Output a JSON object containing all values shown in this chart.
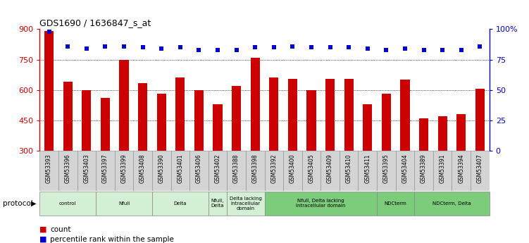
{
  "title": "GDS1690 / 1636847_s_at",
  "samples": [
    "GSM53393",
    "GSM53396",
    "GSM53403",
    "GSM53397",
    "GSM53399",
    "GSM53408",
    "GSM53390",
    "GSM53401",
    "GSM53406",
    "GSM53402",
    "GSM53388",
    "GSM53398",
    "GSM53392",
    "GSM53400",
    "GSM53405",
    "GSM53409",
    "GSM53410",
    "GSM53411",
    "GSM53395",
    "GSM53404",
    "GSM53389",
    "GSM53391",
    "GSM53394",
    "GSM53407"
  ],
  "counts": [
    890,
    640,
    600,
    560,
    748,
    635,
    580,
    660,
    600,
    530,
    620,
    760,
    660,
    655,
    600,
    655,
    655,
    530,
    580,
    650,
    460,
    470,
    480,
    605
  ],
  "percentiles": [
    98,
    86,
    84,
    86,
    86,
    85,
    84,
    85,
    83,
    83,
    83,
    85,
    85,
    86,
    85,
    85,
    85,
    84,
    83,
    84,
    83,
    83,
    83,
    86
  ],
  "bar_color": "#cc0000",
  "dot_color": "#0000cc",
  "ylim_left": [
    300,
    900
  ],
  "ylim_right": [
    0,
    100
  ],
  "yticks_left": [
    300,
    450,
    600,
    750,
    900
  ],
  "yticks_right": [
    0,
    25,
    50,
    75,
    100
  ],
  "groups": [
    {
      "label": "control",
      "start": 0,
      "end": 2,
      "color": "#d4f0d4"
    },
    {
      "label": "Nfull",
      "start": 3,
      "end": 5,
      "color": "#d4f0d4"
    },
    {
      "label": "Delta",
      "start": 6,
      "end": 8,
      "color": "#d4f0d4"
    },
    {
      "label": "Nfull,\nDelta",
      "start": 9,
      "end": 9,
      "color": "#d4f0d4"
    },
    {
      "label": "Delta lacking\nintracellular\ndomain",
      "start": 10,
      "end": 11,
      "color": "#d4f0d4"
    },
    {
      "label": "Nfull, Delta lacking\nintracellular domain",
      "start": 12,
      "end": 17,
      "color": "#7ccc7c"
    },
    {
      "label": "NDCterm",
      "start": 18,
      "end": 19,
      "color": "#7ccc7c"
    },
    {
      "label": "NDCterm, Delta",
      "start": 20,
      "end": 23,
      "color": "#7ccc7c"
    }
  ],
  "legend_count_label": "count",
  "legend_pct_label": "percentile rank within the sample",
  "protocol_label": "protocol",
  "cell_bg": "#d4d4d4",
  "white": "#ffffff"
}
